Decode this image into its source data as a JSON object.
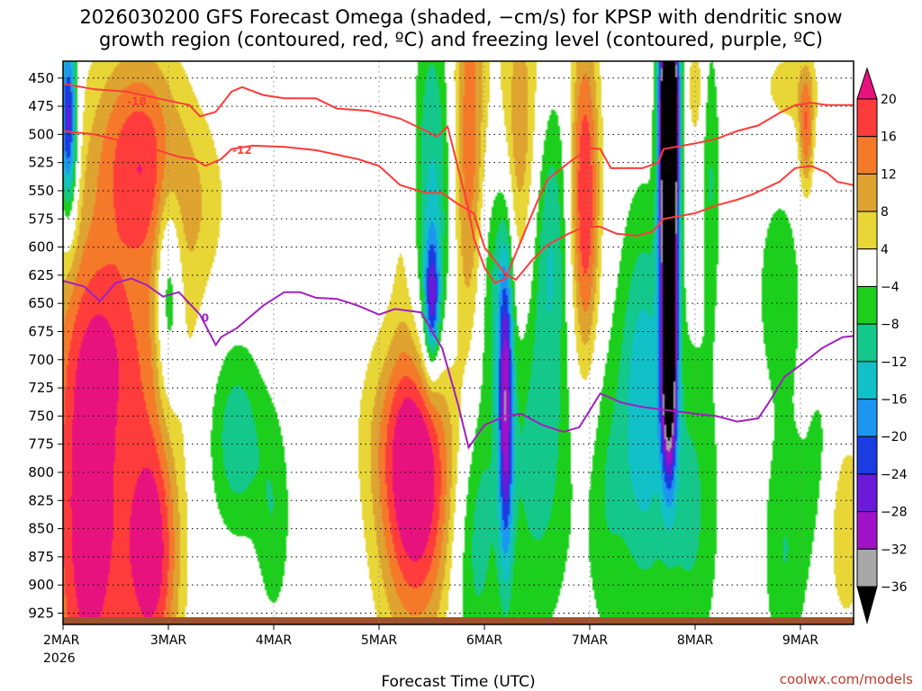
{
  "chart_data": {
    "type": "heatmap",
    "title_line1": "2026030200 GFS Forecast Omega (shaded, −cm/s) for KPSP with dendritic snow",
    "title_line2": "growth region (contoured, red, ºC) and freezing level (contoured, purple, ºC)",
    "xlabel": "Forecast Time (UTC)",
    "credit": "coolwx.com/models",
    "x_ticks": [
      {
        "label": "2MAR",
        "sub": "2026",
        "day": 0
      },
      {
        "label": "3MAR",
        "day": 1
      },
      {
        "label": "4MAR",
        "day": 2
      },
      {
        "label": "5MAR",
        "day": 3
      },
      {
        "label": "6MAR",
        "day": 4
      },
      {
        "label": "7MAR",
        "day": 5
      },
      {
        "label": "8MAR",
        "day": 6
      },
      {
        "label": "9MAR",
        "day": 7
      }
    ],
    "x_range_days": [
      0,
      7.5
    ],
    "y_levels_hpa": [
      "450",
      "475",
      "500",
      "525",
      "550",
      "575",
      "600",
      "625",
      "650",
      "675",
      "700",
      "725",
      "750",
      "775",
      "800",
      "825",
      "850",
      "875",
      "900",
      "925"
    ],
    "y_range_hpa": [
      435,
      935
    ],
    "colorbar": {
      "labels": [
        "20",
        "16",
        "12",
        "8",
        "4",
        "−4",
        "−8",
        "−12",
        "−16",
        "−20",
        "−24",
        "−28",
        "−32",
        "−36"
      ],
      "bins": [
        {
          "color": "#e8127f",
          "lo": 20,
          "hi": 99
        },
        {
          "color": "#ff3c3c",
          "lo": 16,
          "hi": 20
        },
        {
          "color": "#f47a2a",
          "lo": 12,
          "hi": 16
        },
        {
          "color": "#dfa430",
          "lo": 8,
          "hi": 12
        },
        {
          "color": "#e8d636",
          "lo": 4,
          "hi": 8
        },
        {
          "color": "#ffffff",
          "lo": -4,
          "hi": 4
        },
        {
          "color": "#1ccf1c",
          "lo": -8,
          "hi": -4
        },
        {
          "color": "#14c88c",
          "lo": -12,
          "hi": -8
        },
        {
          "color": "#12c0c8",
          "lo": -16,
          "hi": -12
        },
        {
          "color": "#1c96f0",
          "lo": -20,
          "hi": -16
        },
        {
          "color": "#1a3ce0",
          "lo": -24,
          "hi": -20
        },
        {
          "color": "#6a1ad8",
          "lo": -28,
          "hi": -24
        },
        {
          "color": "#a012c8",
          "lo": -32,
          "hi": -28
        },
        {
          "color": "#a8a8a8",
          "lo": -36,
          "hi": -32
        },
        {
          "color": "#000000",
          "lo": -99,
          "hi": -36
        }
      ]
    },
    "omega_features": [
      {
        "day": 0.25,
        "hpa": 840,
        "value": 24,
        "sx": 0.28,
        "sy": 170
      },
      {
        "day": 0.85,
        "hpa": 870,
        "value": 22,
        "sx": 0.18,
        "sy": 90
      },
      {
        "day": 0.7,
        "hpa": 520,
        "value": 17,
        "sx": 0.28,
        "sy": 70
      },
      {
        "day": 0.55,
        "hpa": 690,
        "value": 8,
        "sx": 0.35,
        "sy": 60
      },
      {
        "day": 1.0,
        "hpa": 600,
        "value": 7,
        "sx": 0.2,
        "sy": 90
      },
      {
        "day": 0.05,
        "hpa": 490,
        "value": -28,
        "sx": 0.06,
        "sy": 60
      },
      {
        "day": 1.0,
        "hpa": 640,
        "value": -17,
        "sx": 0.09,
        "sy": 70
      },
      {
        "day": 1.65,
        "hpa": 770,
        "value": -11,
        "sx": 0.18,
        "sy": 60
      },
      {
        "day": 1.35,
        "hpa": 560,
        "value": 5,
        "sx": 0.18,
        "sy": 60
      },
      {
        "day": 2.0,
        "hpa": 840,
        "value": -7,
        "sx": 0.12,
        "sy": 70
      },
      {
        "day": 3.35,
        "hpa": 825,
        "value": 23,
        "sx": 0.25,
        "sy": 90
      },
      {
        "day": 3.35,
        "hpa": 760,
        "value": 8,
        "sx": 0.35,
        "sy": 60
      },
      {
        "day": 3.5,
        "hpa": 560,
        "value": -13,
        "sx": 0.16,
        "sy": 130
      },
      {
        "day": 3.5,
        "hpa": 650,
        "value": -21,
        "sx": 0.05,
        "sy": 40
      },
      {
        "day": 3.25,
        "hpa": 560,
        "value": 6,
        "sx": 0.1,
        "sy": 110
      },
      {
        "day": 3.85,
        "hpa": 520,
        "value": 16,
        "sx": 0.12,
        "sy": 150
      },
      {
        "day": 3.9,
        "hpa": 830,
        "value": -12,
        "sx": 0.16,
        "sy": 110
      },
      {
        "day": 4.2,
        "hpa": 740,
        "value": -26,
        "sx": 0.05,
        "sy": 100
      },
      {
        "day": 4.1,
        "hpa": 610,
        "value": -10,
        "sx": 0.12,
        "sy": 80
      },
      {
        "day": 4.35,
        "hpa": 520,
        "value": 13,
        "sx": 0.16,
        "sy": 110
      },
      {
        "day": 4.6,
        "hpa": 580,
        "value": -12,
        "sx": 0.14,
        "sy": 90
      },
      {
        "day": 4.95,
        "hpa": 560,
        "value": 21,
        "sx": 0.1,
        "sy": 110
      },
      {
        "day": 4.5,
        "hpa": 780,
        "value": -10,
        "sx": 0.25,
        "sy": 120
      },
      {
        "day": 5.15,
        "hpa": 820,
        "value": -7,
        "sx": 0.14,
        "sy": 100
      },
      {
        "day": 5.5,
        "hpa": 740,
        "value": -15,
        "sx": 0.16,
        "sy": 120
      },
      {
        "day": 5.75,
        "hpa": 540,
        "value": -60,
        "sx": 0.06,
        "sy": 110
      },
      {
        "day": 5.75,
        "hpa": 720,
        "value": -30,
        "sx": 0.05,
        "sy": 60
      },
      {
        "day": 5.75,
        "hpa": 470,
        "value": -28,
        "sx": 0.06,
        "sy": 40
      },
      {
        "day": 5.95,
        "hpa": 830,
        "value": -9,
        "sx": 0.2,
        "sy": 110
      },
      {
        "day": 6.15,
        "hpa": 540,
        "value": -8,
        "sx": 0.06,
        "sy": 90
      },
      {
        "day": 6.0,
        "hpa": 460,
        "value": 8,
        "sx": 0.05,
        "sy": 30
      },
      {
        "day": 6.8,
        "hpa": 640,
        "value": -7,
        "sx": 0.16,
        "sy": 70
      },
      {
        "day": 6.85,
        "hpa": 870,
        "value": -8,
        "sx": 0.15,
        "sy": 80
      },
      {
        "day": 6.9,
        "hpa": 460,
        "value": 6,
        "sx": 0.22,
        "sy": 30
      },
      {
        "day": 7.05,
        "hpa": 500,
        "value": 14,
        "sx": 0.05,
        "sy": 40
      },
      {
        "day": 7.4,
        "hpa": 850,
        "value": 9,
        "sx": 0.15,
        "sy": 60
      },
      {
        "day": 7.2,
        "hpa": 810,
        "value": -6,
        "sx": 0.12,
        "sy": 80
      }
    ],
    "dgz_red_contours": [
      {
        "label": "-18",
        "label_at": [
          0.7,
          471
        ],
        "points": [
          [
            0,
            455
          ],
          [
            0.3,
            460
          ],
          [
            0.6,
            462
          ],
          [
            0.8,
            466
          ],
          [
            1.0,
            470
          ],
          [
            1.2,
            474
          ],
          [
            1.3,
            484
          ],
          [
            1.45,
            480
          ],
          [
            1.6,
            462
          ],
          [
            1.7,
            458
          ],
          [
            1.9,
            465
          ],
          [
            2.1,
            468
          ],
          [
            2.4,
            468
          ],
          [
            2.6,
            477
          ],
          [
            2.9,
            479
          ],
          [
            3.2,
            486
          ],
          [
            3.45,
            497
          ],
          [
            3.55,
            502
          ],
          [
            3.65,
            493
          ],
          [
            3.75,
            530
          ],
          [
            3.85,
            567
          ],
          [
            3.9,
            592
          ],
          [
            4.0,
            618
          ],
          [
            4.1,
            632
          ],
          [
            4.2,
            628
          ],
          [
            4.35,
            594
          ],
          [
            4.5,
            560
          ],
          [
            4.6,
            540
          ],
          [
            4.8,
            525
          ],
          [
            5.0,
            512
          ],
          [
            5.1,
            513
          ],
          [
            5.2,
            530
          ],
          [
            5.5,
            530
          ],
          [
            5.65,
            525
          ],
          [
            5.7,
            513
          ],
          [
            6.0,
            508
          ],
          [
            6.2,
            504
          ],
          [
            6.4,
            497
          ],
          [
            6.6,
            492
          ],
          [
            6.8,
            481
          ],
          [
            6.95,
            474
          ],
          [
            7.1,
            472
          ],
          [
            7.25,
            474
          ],
          [
            7.5,
            474
          ]
        ]
      },
      {
        "label": "-12",
        "label_at": [
          1.7,
          514
        ],
        "points": [
          [
            0,
            497
          ],
          [
            0.3,
            500
          ],
          [
            0.6,
            507
          ],
          [
            0.9,
            514
          ],
          [
            1.1,
            520
          ],
          [
            1.25,
            522
          ],
          [
            1.35,
            528
          ],
          [
            1.5,
            522
          ],
          [
            1.6,
            513
          ],
          [
            1.8,
            510
          ],
          [
            2.1,
            511
          ],
          [
            2.4,
            514
          ],
          [
            2.6,
            518
          ],
          [
            2.8,
            522
          ],
          [
            3.0,
            528
          ],
          [
            3.2,
            545
          ],
          [
            3.45,
            552
          ],
          [
            3.6,
            552
          ],
          [
            3.75,
            562
          ],
          [
            3.9,
            570
          ],
          [
            4.0,
            600
          ],
          [
            4.2,
            624
          ],
          [
            4.3,
            629
          ],
          [
            4.45,
            612
          ],
          [
            4.6,
            598
          ],
          [
            4.8,
            588
          ],
          [
            4.95,
            582
          ],
          [
            5.1,
            582
          ],
          [
            5.25,
            588
          ],
          [
            5.45,
            590
          ],
          [
            5.6,
            586
          ],
          [
            5.7,
            575
          ],
          [
            6.0,
            570
          ],
          [
            6.2,
            563
          ],
          [
            6.4,
            558
          ],
          [
            6.55,
            553
          ],
          [
            6.8,
            542
          ],
          [
            6.95,
            530
          ],
          [
            7.1,
            528
          ],
          [
            7.25,
            534
          ],
          [
            7.35,
            542
          ],
          [
            7.5,
            545
          ]
        ]
      }
    ],
    "freezing_contour": {
      "label": "0",
      "label_at": [
        1.35,
        663
      ],
      "points": [
        [
          0,
          630
        ],
        [
          0.2,
          635
        ],
        [
          0.35,
          648
        ],
        [
          0.5,
          632
        ],
        [
          0.65,
          628
        ],
        [
          0.8,
          634
        ],
        [
          0.95,
          644
        ],
        [
          1.1,
          640
        ],
        [
          1.3,
          660
        ],
        [
          1.45,
          687
        ],
        [
          1.5,
          680
        ],
        [
          1.65,
          672
        ],
        [
          1.9,
          652
        ],
        [
          2.1,
          640
        ],
        [
          2.25,
          640
        ],
        [
          2.4,
          645
        ],
        [
          2.6,
          646
        ],
        [
          2.8,
          652
        ],
        [
          3.0,
          660
        ],
        [
          3.15,
          655
        ],
        [
          3.4,
          658
        ],
        [
          3.6,
          690
        ],
        [
          3.75,
          740
        ],
        [
          3.85,
          778
        ],
        [
          4.0,
          758
        ],
        [
          4.2,
          750
        ],
        [
          4.35,
          748
        ],
        [
          4.55,
          758
        ],
        [
          4.75,
          764
        ],
        [
          4.9,
          760
        ],
        [
          5.0,
          745
        ],
        [
          5.1,
          730
        ],
        [
          5.3,
          738
        ],
        [
          5.5,
          742
        ],
        [
          5.75,
          745
        ],
        [
          6.0,
          748
        ],
        [
          6.2,
          750
        ],
        [
          6.4,
          755
        ],
        [
          6.6,
          752
        ],
        [
          6.7,
          738
        ],
        [
          6.85,
          715
        ],
        [
          7.0,
          705
        ],
        [
          7.2,
          690
        ],
        [
          7.4,
          680
        ],
        [
          7.5,
          679
        ]
      ]
    }
  }
}
